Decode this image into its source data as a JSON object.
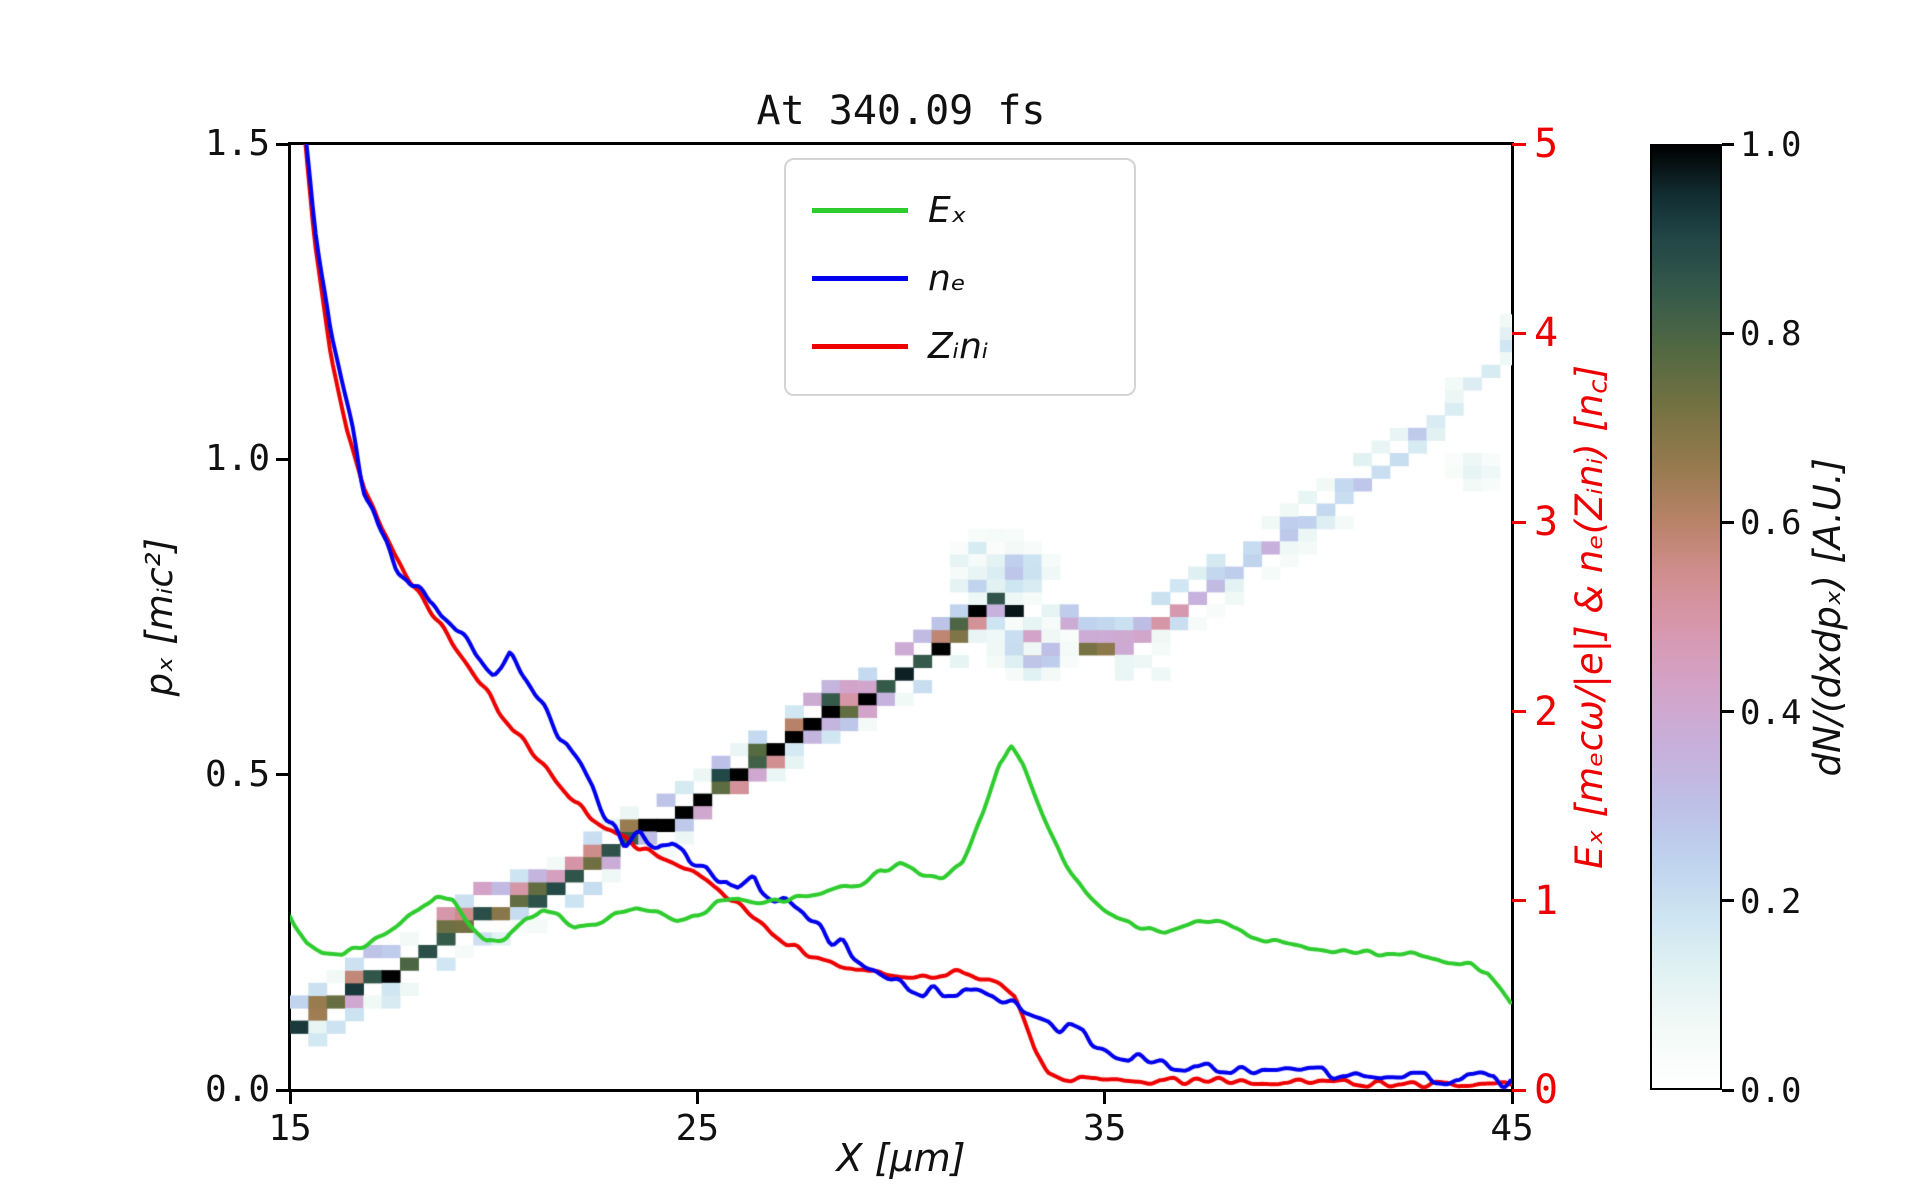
{
  "title": "At 340.09 fs",
  "axes": {
    "x": {
      "label": "X [μm]",
      "min": 15,
      "max": 45,
      "ticks": [
        {
          "v": 15,
          "label": "15"
        },
        {
          "v": 25,
          "label": "25"
        },
        {
          "v": 35,
          "label": "35"
        },
        {
          "v": 45,
          "label": "45"
        }
      ]
    },
    "y_left": {
      "label": "pₓ [mᵢc²]",
      "min": 0,
      "max": 1.5,
      "ticks": [
        {
          "v": 0,
          "label": "0.0"
        },
        {
          "v": 0.5,
          "label": "0.5"
        },
        {
          "v": 1.0,
          "label": "1.0"
        },
        {
          "v": 1.5,
          "label": "1.5"
        }
      ]
    },
    "y_right": {
      "label_main": "Eₓ [mₑcω/|e|] & nₑ(Zᵢnᵢ) [n",
      "label_sub": "c",
      "label_end": "]",
      "min": 0,
      "max": 5,
      "color": "#ee0000",
      "ticks": [
        {
          "v": 0,
          "label": "0"
        },
        {
          "v": 1,
          "label": "1"
        },
        {
          "v": 2,
          "label": "2"
        },
        {
          "v": 3,
          "label": "3"
        },
        {
          "v": 4,
          "label": "4"
        },
        {
          "v": 5,
          "label": "5"
        }
      ]
    }
  },
  "colorbar": {
    "label": "dN/(dxdpₓ) [A.U.]",
    "min": 0,
    "max": 1,
    "ticks": [
      {
        "v": 0,
        "label": "0.0"
      },
      {
        "v": 0.2,
        "label": "0.2"
      },
      {
        "v": 0.4,
        "label": "0.4"
      },
      {
        "v": 0.6,
        "label": "0.6"
      },
      {
        "v": 0.8,
        "label": "0.8"
      },
      {
        "v": 1.0,
        "label": "1.0"
      }
    ]
  },
  "legend": {
    "items": [
      {
        "label": "Eₓ",
        "color": "#2ecc2e"
      },
      {
        "label": "nₑ",
        "color": "#0000ee"
      },
      {
        "label": "Zᵢnᵢ",
        "color": "#ee0000"
      }
    ]
  },
  "chart_data": {
    "type": "line+heatmap",
    "x_range": [
      15,
      45
    ],
    "y_left_range": [
      0,
      1.5
    ],
    "y_right_range": [
      0,
      5
    ],
    "grid": false,
    "legend_position": "upper center-left inside axes",
    "series": [
      {
        "name": "Ex",
        "color": "#2ecc2e",
        "axis": "right",
        "noise": 0.012,
        "points": [
          [
            15,
            0.92
          ],
          [
            15.4,
            0.78
          ],
          [
            15.8,
            0.73
          ],
          [
            16.3,
            0.72
          ],
          [
            17,
            0.78
          ],
          [
            17.6,
            0.86
          ],
          [
            18.2,
            0.96
          ],
          [
            18.6,
            1.03
          ],
          [
            19,
            1.0
          ],
          [
            19.4,
            0.88
          ],
          [
            19.8,
            0.79
          ],
          [
            20.3,
            0.8
          ],
          [
            20.8,
            0.9
          ],
          [
            21.2,
            0.95
          ],
          [
            21.6,
            0.92
          ],
          [
            22,
            0.86
          ],
          [
            22.5,
            0.87
          ],
          [
            23,
            0.93
          ],
          [
            23.5,
            0.97
          ],
          [
            24,
            0.95
          ],
          [
            24.5,
            0.9
          ],
          [
            25,
            0.92
          ],
          [
            25.5,
            0.99
          ],
          [
            26,
            1.02
          ],
          [
            26.5,
            0.99
          ],
          [
            27,
            1.0
          ],
          [
            27.5,
            1.02
          ],
          [
            28,
            1.04
          ],
          [
            28.5,
            1.07
          ],
          [
            29,
            1.09
          ],
          [
            29.5,
            1.16
          ],
          [
            30,
            1.19
          ],
          [
            30.5,
            1.14
          ],
          [
            31,
            1.12
          ],
          [
            31.5,
            1.2
          ],
          [
            32,
            1.45
          ],
          [
            32.4,
            1.72
          ],
          [
            32.7,
            1.81
          ],
          [
            33,
            1.72
          ],
          [
            33.5,
            1.45
          ],
          [
            34,
            1.21
          ],
          [
            34.5,
            1.05
          ],
          [
            35,
            0.95
          ],
          [
            35.5,
            0.89
          ],
          [
            36,
            0.85
          ],
          [
            36.5,
            0.83
          ],
          [
            37,
            0.86
          ],
          [
            37.5,
            0.9
          ],
          [
            38,
            0.88
          ],
          [
            38.5,
            0.82
          ],
          [
            39,
            0.79
          ],
          [
            39.5,
            0.77
          ],
          [
            40,
            0.75
          ],
          [
            40.5,
            0.74
          ],
          [
            41,
            0.73
          ],
          [
            41.5,
            0.73
          ],
          [
            42,
            0.71
          ],
          [
            42.5,
            0.72
          ],
          [
            43,
            0.7
          ],
          [
            43.5,
            0.68
          ],
          [
            44,
            0.66
          ],
          [
            44.4,
            0.62
          ],
          [
            44.7,
            0.54
          ],
          [
            45,
            0.45
          ]
        ]
      },
      {
        "name": "ne",
        "color": "#0000ee",
        "axis": "right",
        "noise": 0.045,
        "points": [
          [
            15,
            6.0
          ],
          [
            15.3,
            5.2
          ],
          [
            15.6,
            4.6
          ],
          [
            16,
            4.0
          ],
          [
            16.4,
            3.6
          ],
          [
            16.8,
            3.2
          ],
          [
            17.2,
            2.95
          ],
          [
            17.6,
            2.78
          ],
          [
            18,
            2.66
          ],
          [
            18.4,
            2.58
          ],
          [
            18.8,
            2.52
          ],
          [
            19.2,
            2.42
          ],
          [
            19.6,
            2.3
          ],
          [
            20,
            2.22
          ],
          [
            20.4,
            2.32
          ],
          [
            20.8,
            2.2
          ],
          [
            21.2,
            2.05
          ],
          [
            21.6,
            1.88
          ],
          [
            22,
            1.74
          ],
          [
            22.4,
            1.6
          ],
          [
            22.8,
            1.42
          ],
          [
            23.2,
            1.32
          ],
          [
            23.6,
            1.36
          ],
          [
            24,
            1.26
          ],
          [
            24.4,
            1.3
          ],
          [
            24.8,
            1.22
          ],
          [
            25.2,
            1.2
          ],
          [
            25.6,
            1.12
          ],
          [
            26,
            1.04
          ],
          [
            26.4,
            1.1
          ],
          [
            26.8,
            1.02
          ],
          [
            27.2,
            0.98
          ],
          [
            27.6,
            0.93
          ],
          [
            28,
            0.84
          ],
          [
            28.4,
            0.78
          ],
          [
            28.8,
            0.74
          ],
          [
            29.2,
            0.68
          ],
          [
            29.6,
            0.62
          ],
          [
            30,
            0.58
          ],
          [
            30.5,
            0.54
          ],
          [
            31,
            0.5
          ],
          [
            31.5,
            0.52
          ],
          [
            32,
            0.48
          ],
          [
            32.5,
            0.45
          ],
          [
            33,
            0.41
          ],
          [
            33.5,
            0.38
          ],
          [
            34,
            0.34
          ],
          [
            34.5,
            0.29
          ],
          [
            35,
            0.22
          ],
          [
            35.5,
            0.18
          ],
          [
            36,
            0.15
          ],
          [
            36.5,
            0.14
          ],
          [
            37,
            0.13
          ],
          [
            37.5,
            0.12
          ],
          [
            38,
            0.12
          ],
          [
            38.5,
            0.11
          ],
          [
            39,
            0.1
          ],
          [
            39.5,
            0.1
          ],
          [
            40,
            0.09
          ],
          [
            40.5,
            0.09
          ],
          [
            41,
            0.08
          ],
          [
            41.5,
            0.08
          ],
          [
            42,
            0.07
          ],
          [
            42.5,
            0.07
          ],
          [
            43,
            0.06
          ],
          [
            43.5,
            0.06
          ],
          [
            44,
            0.05
          ],
          [
            44.5,
            0.05
          ],
          [
            45,
            0.05
          ]
        ]
      },
      {
        "name": "Zini",
        "color": "#ee0000",
        "axis": "right",
        "noise": 0.02,
        "points": [
          [
            15,
            6.2
          ],
          [
            15.3,
            5.2
          ],
          [
            15.6,
            4.5
          ],
          [
            16,
            3.9
          ],
          [
            16.4,
            3.5
          ],
          [
            16.8,
            3.2
          ],
          [
            17.2,
            2.98
          ],
          [
            17.6,
            2.82
          ],
          [
            18,
            2.68
          ],
          [
            18.4,
            2.55
          ],
          [
            18.8,
            2.42
          ],
          [
            19.2,
            2.3
          ],
          [
            19.6,
            2.18
          ],
          [
            20,
            2.05
          ],
          [
            20.4,
            1.93
          ],
          [
            20.8,
            1.82
          ],
          [
            21.2,
            1.72
          ],
          [
            21.6,
            1.62
          ],
          [
            22,
            1.52
          ],
          [
            22.4,
            1.45
          ],
          [
            22.8,
            1.39
          ],
          [
            23.2,
            1.33
          ],
          [
            23.6,
            1.28
          ],
          [
            24,
            1.23
          ],
          [
            24.4,
            1.19
          ],
          [
            24.8,
            1.15
          ],
          [
            25.2,
            1.1
          ],
          [
            25.6,
            1.04
          ],
          [
            26,
            0.98
          ],
          [
            26.4,
            0.91
          ],
          [
            26.8,
            0.84
          ],
          [
            27.2,
            0.78
          ],
          [
            27.6,
            0.73
          ],
          [
            28,
            0.69
          ],
          [
            28.4,
            0.66
          ],
          [
            28.8,
            0.64
          ],
          [
            29.2,
            0.62
          ],
          [
            29.6,
            0.61
          ],
          [
            30,
            0.6
          ],
          [
            30.4,
            0.6
          ],
          [
            30.8,
            0.61
          ],
          [
            31.2,
            0.62
          ],
          [
            31.6,
            0.62
          ],
          [
            32,
            0.6
          ],
          [
            32.4,
            0.57
          ],
          [
            32.8,
            0.5
          ],
          [
            33,
            0.38
          ],
          [
            33.3,
            0.2
          ],
          [
            33.6,
            0.1
          ],
          [
            34,
            0.06
          ],
          [
            34.5,
            0.05
          ],
          [
            35,
            0.05
          ],
          [
            36,
            0.05
          ],
          [
            37,
            0.05
          ],
          [
            38,
            0.05
          ],
          [
            39,
            0.04
          ],
          [
            40,
            0.04
          ],
          [
            41,
            0.04
          ],
          [
            42,
            0.03
          ],
          [
            43,
            0.03
          ],
          [
            44,
            0.03
          ],
          [
            45,
            0.03
          ]
        ]
      }
    ],
    "phase_space_band": [
      [
        15.0,
        0.1,
        0.8
      ],
      [
        15.5,
        0.115,
        0.7
      ],
      [
        16.0,
        0.13,
        0.75
      ],
      [
        16.5,
        0.15,
        0.85
      ],
      [
        17.0,
        0.17,
        0.9
      ],
      [
        17.5,
        0.19,
        0.95
      ],
      [
        18.0,
        0.21,
        0.95
      ],
      [
        18.5,
        0.23,
        1.0
      ],
      [
        19.0,
        0.25,
        1.0
      ],
      [
        19.5,
        0.265,
        0.9
      ],
      [
        20.0,
        0.28,
        0.85
      ],
      [
        20.5,
        0.29,
        0.8
      ],
      [
        21.0,
        0.3,
        0.85
      ],
      [
        21.5,
        0.32,
        0.9
      ],
      [
        22.0,
        0.34,
        0.95
      ],
      [
        22.5,
        0.36,
        1.0
      ],
      [
        23.0,
        0.38,
        1.0
      ],
      [
        23.5,
        0.4,
        1.0
      ],
      [
        24.0,
        0.42,
        1.0
      ],
      [
        24.5,
        0.44,
        0.95
      ],
      [
        25.0,
        0.46,
        0.95
      ],
      [
        25.5,
        0.48,
        1.0
      ],
      [
        26.0,
        0.5,
        1.0
      ],
      [
        26.5,
        0.52,
        1.0
      ],
      [
        27.0,
        0.54,
        1.0
      ],
      [
        27.5,
        0.56,
        0.95
      ],
      [
        28.0,
        0.58,
        0.95
      ],
      [
        28.5,
        0.6,
        0.9
      ],
      [
        29.0,
        0.62,
        0.9
      ],
      [
        29.5,
        0.64,
        0.85
      ],
      [
        30.0,
        0.66,
        0.85
      ],
      [
        30.5,
        0.68,
        0.9
      ],
      [
        31.0,
        0.7,
        0.9
      ],
      [
        31.5,
        0.73,
        0.95
      ],
      [
        32.0,
        0.77,
        1.0
      ],
      [
        32.5,
        0.78,
        1.0
      ],
      [
        33.0,
        0.76,
        0.95
      ],
      [
        33.5,
        0.735,
        0.85
      ],
      [
        34.0,
        0.72,
        0.7
      ],
      [
        34.5,
        0.71,
        0.6
      ],
      [
        35.0,
        0.705,
        0.55
      ],
      [
        35.5,
        0.71,
        0.5
      ],
      [
        36.0,
        0.725,
        0.45
      ],
      [
        36.5,
        0.745,
        0.4
      ],
      [
        37.0,
        0.765,
        0.38
      ],
      [
        37.5,
        0.785,
        0.35
      ],
      [
        38.0,
        0.805,
        0.32
      ],
      [
        38.5,
        0.83,
        0.3
      ],
      [
        39.0,
        0.85,
        0.3
      ],
      [
        39.5,
        0.87,
        0.28
      ],
      [
        40.0,
        0.895,
        0.28
      ],
      [
        40.5,
        0.92,
        0.26
      ],
      [
        41.0,
        0.945,
        0.25
      ],
      [
        41.5,
        0.97,
        0.24
      ],
      [
        42.0,
        0.995,
        0.22
      ],
      [
        42.5,
        1.02,
        0.22
      ],
      [
        43.0,
        1.05,
        0.2
      ],
      [
        43.5,
        1.08,
        0.2
      ],
      [
        44.0,
        1.11,
        0.18
      ],
      [
        44.5,
        1.15,
        0.18
      ],
      [
        45.0,
        1.19,
        0.16
      ]
    ],
    "blobs": [
      {
        "x": 32.2,
        "p": 0.84,
        "r": 2,
        "i": 0.35
      },
      {
        "x": 32.6,
        "p": 0.82,
        "r": 2,
        "i": 0.3
      },
      {
        "x": 31.9,
        "p": 0.8,
        "r": 1,
        "i": 0.4
      },
      {
        "x": 33.2,
        "p": 0.7,
        "r": 2,
        "i": 0.45
      },
      {
        "x": 33.8,
        "p": 0.69,
        "r": 1,
        "i": 0.3
      },
      {
        "x": 44.1,
        "p": 0.97,
        "r": 2,
        "i": 0.09
      },
      {
        "x": 35.6,
        "p": 0.675,
        "r": 1,
        "i": 0.12
      },
      {
        "x": 36.3,
        "p": 0.66,
        "r": 1,
        "i": 0.1
      }
    ],
    "colormap_stops": [
      [
        0.0,
        255,
        255,
        255
      ],
      [
        0.06,
        243,
        250,
        247
      ],
      [
        0.12,
        226,
        242,
        243
      ],
      [
        0.18,
        206,
        229,
        242
      ],
      [
        0.24,
        191,
        211,
        238
      ],
      [
        0.3,
        190,
        192,
        231
      ],
      [
        0.36,
        199,
        176,
        219
      ],
      [
        0.42,
        211,
        164,
        202
      ],
      [
        0.48,
        215,
        153,
        177
      ],
      [
        0.54,
        210,
        143,
        146
      ],
      [
        0.6,
        185,
        131,
        105
      ],
      [
        0.66,
        150,
        122,
        78
      ],
      [
        0.72,
        118,
        114,
        66
      ],
      [
        0.78,
        84,
        105,
        66
      ],
      [
        0.84,
        55,
        91,
        74
      ],
      [
        0.9,
        33,
        71,
        71
      ],
      [
        0.95,
        17,
        44,
        49
      ],
      [
        1.0,
        0,
        0,
        0
      ]
    ]
  }
}
